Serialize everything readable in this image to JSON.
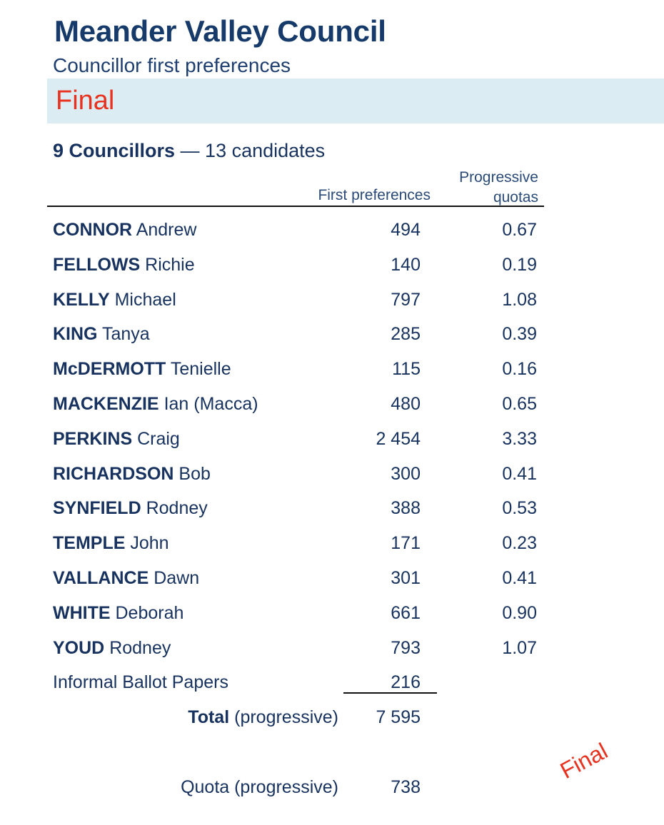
{
  "header": {
    "title": "Meander Valley Council",
    "subtitle": "Councillor first preferences",
    "status": "Final"
  },
  "summary": {
    "councillors": "9 Councillors",
    "candidates": "— 13 candidates"
  },
  "columns": {
    "first_preferences": "First preferences",
    "progressive_quotas_line1": "Progressive",
    "progressive_quotas_line2": "quotas"
  },
  "candidates": [
    {
      "surname": "CONNOR",
      "given": "Andrew",
      "first_preferences": "494",
      "quota": "0.67"
    },
    {
      "surname": "FELLOWS",
      "given": "Richie",
      "first_preferences": "140",
      "quota": "0.19"
    },
    {
      "surname": "KELLY",
      "given": "Michael",
      "first_preferences": "797",
      "quota": "1.08"
    },
    {
      "surname": "KING",
      "given": "Tanya",
      "first_preferences": "285",
      "quota": "0.39"
    },
    {
      "surname": "McDERMOTT",
      "given": "Tenielle",
      "first_preferences": "115",
      "quota": "0.16"
    },
    {
      "surname": "MACKENZIE",
      "given": "Ian (Macca)",
      "first_preferences": "480",
      "quota": "0.65"
    },
    {
      "surname": "PERKINS",
      "given": "Craig",
      "first_preferences": "2 454",
      "quota": "3.33"
    },
    {
      "surname": "RICHARDSON",
      "given": "Bob",
      "first_preferences": "300",
      "quota": "0.41"
    },
    {
      "surname": "SYNFIELD",
      "given": "Rodney",
      "first_preferences": "388",
      "quota": "0.53"
    },
    {
      "surname": "TEMPLE",
      "given": "John",
      "first_preferences": "171",
      "quota": "0.23"
    },
    {
      "surname": "VALLANCE",
      "given": "Dawn",
      "first_preferences": "301",
      "quota": "0.41"
    },
    {
      "surname": "WHITE",
      "given": "Deborah",
      "first_preferences": "661",
      "quota": "0.90"
    },
    {
      "surname": "YOUD",
      "given": "Rodney",
      "first_preferences": "793",
      "quota": "1.07"
    }
  ],
  "informal": {
    "label": "Informal Ballot Papers",
    "value": "216"
  },
  "total": {
    "label_bold": "Total",
    "label_rest": "(progressive)",
    "value": "7 595"
  },
  "quota": {
    "label": "Quota (progressive)",
    "value": "738"
  },
  "stamp": "Final",
  "colors": {
    "navy": "#17325f",
    "status_red": "#e8321f",
    "band": "#dbedf3"
  }
}
